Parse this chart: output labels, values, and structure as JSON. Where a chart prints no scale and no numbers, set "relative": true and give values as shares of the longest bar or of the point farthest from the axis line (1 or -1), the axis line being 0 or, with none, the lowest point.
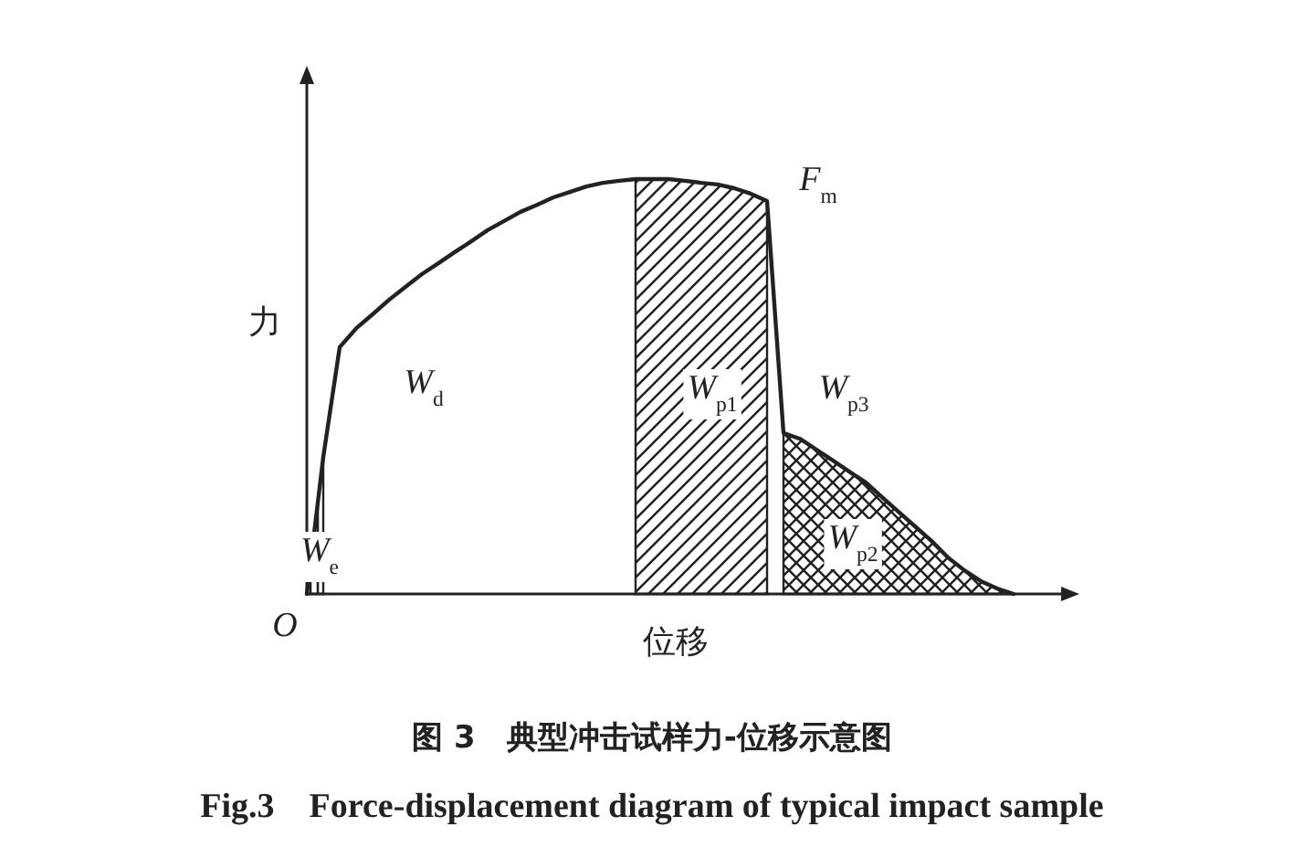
{
  "chart_data": {
    "type": "line",
    "relative": true,
    "title": "图 3　典型冲击试样力-位移示意图",
    "subtitle": "Fig.3　Force-displacement diagram of typical impact sample",
    "xlabel": "位移",
    "ylabel": "力",
    "categories": [
      null,
      null,
      null,
      null,
      null,
      null,
      null,
      null,
      null,
      null,
      null,
      null,
      null,
      null,
      null,
      null,
      null,
      null,
      null,
      null,
      null,
      null,
      null,
      null,
      null,
      null,
      null,
      null,
      null,
      null,
      null,
      null,
      null,
      null,
      null,
      null,
      null,
      null,
      null,
      null,
      null,
      null,
      null,
      null,
      null,
      null,
      null
    ],
    "series": [
      {
        "type": "line",
        "color": "#222222",
        "values": [
          0,
          0.33,
          0.595,
          0.64,
          0.674,
          0.709,
          0.74,
          0.771,
          0.797,
          0.824,
          0.85,
          0.877,
          0.899,
          0.921,
          0.938,
          0.956,
          0.969,
          0.982,
          0.991,
          0.996,
          1,
          1,
          1,
          0.996,
          0.991,
          0.987,
          0.978,
          0.965,
          0.947,
          0.388,
          0.374,
          0.348,
          0.322,
          0.295,
          0.269,
          0.233,
          0.198,
          0.163,
          0.128,
          0.088,
          0.057,
          0.031,
          0.013,
          0,
          null,
          null,
          null
        ]
      },
      {
        "type": "area",
        "color": "#222222",
        "values": [
          null,
          null,
          null,
          null,
          null,
          null,
          null,
          null,
          null,
          null,
          null,
          null,
          null,
          null,
          null,
          null,
          null,
          null,
          null,
          null,
          1,
          1,
          1,
          0.996,
          0.991,
          0.987,
          0.978,
          0.965,
          0.947,
          null,
          null,
          null,
          null,
          null,
          null,
          null,
          null,
          null,
          null,
          null,
          null,
          null,
          null,
          null,
          null,
          null,
          null
        ]
      },
      {
        "type": "area",
        "color": "#222222",
        "values": [
          null,
          null,
          null,
          null,
          null,
          null,
          null,
          null,
          null,
          null,
          null,
          null,
          null,
          null,
          null,
          null,
          null,
          null,
          null,
          null,
          null,
          null,
          null,
          null,
          null,
          null,
          null,
          null,
          null,
          0.388,
          0.374,
          0.348,
          0.322,
          0.295,
          0.269,
          0.233,
          0.198,
          0.163,
          0.128,
          0.088,
          0.057,
          0.031,
          0.013,
          0,
          null,
          null,
          null
        ]
      },
      {
        "type": "area",
        "color": "#222222",
        "values": [
          0,
          0.33,
          null,
          null,
          null,
          null,
          null,
          null,
          null,
          null,
          null,
          null,
          null,
          null,
          null,
          null,
          null,
          null,
          null,
          null,
          null,
          null,
          null,
          null,
          null,
          null,
          null,
          null,
          null,
          null,
          null,
          null,
          null,
          null,
          null,
          null,
          null,
          null,
          null,
          null,
          null,
          null,
          null,
          null,
          null,
          null,
          null
        ]
      }
    ],
    "annotations": [
      "O",
      "F$_{m}$",
      "W$_{d}$",
      "W$_{p1}$",
      "W$_{p3}$",
      "W$_{p2}$",
      "W$_{e}$"
    ]
  }
}
